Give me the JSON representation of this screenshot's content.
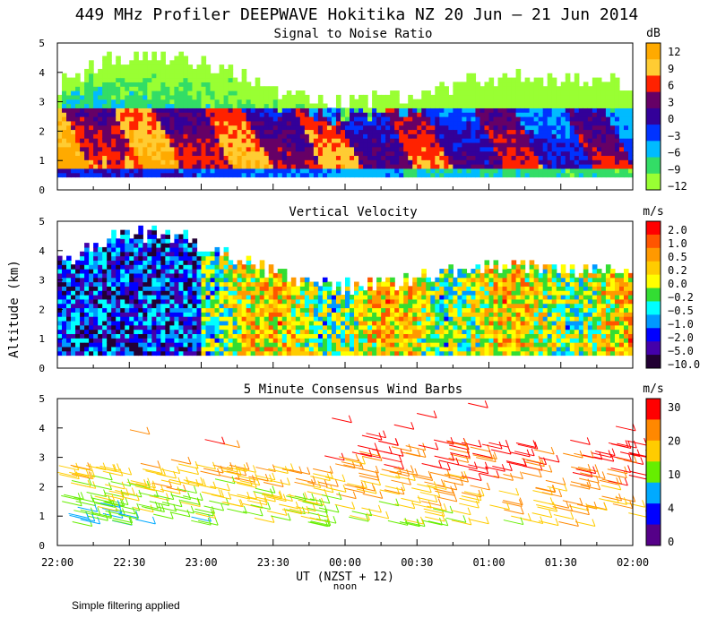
{
  "title": "449 MHz Profiler DEEPWAVE Hokitika NZ 20 Jun – 21 Jun 2014",
  "ylabel": "Altitude (km)",
  "xlabel": "UT  (NZST + 12)",
  "noon_label": "noon",
  "footer": "Simple filtering applied",
  "x_ticks": [
    "22:00",
    "22:30",
    "23:00",
    "23:30",
    "00:00",
    "00:30",
    "01:00",
    "01:30",
    "02:00"
  ],
  "chart_data": [
    {
      "type": "heatmap",
      "title": "Signal to Noise Ratio",
      "ylim": [
        0,
        5
      ],
      "y_ticks": [
        "0",
        "1",
        "2",
        "3",
        "4",
        "5"
      ],
      "colorbar": {
        "unit": "dB",
        "labels": [
          "12",
          "9",
          "6",
          "3",
          "0",
          "−3",
          "−6",
          "−9",
          "−12"
        ],
        "colors": [
          "#ffaa00",
          "#ffcc33",
          "#ff2200",
          "#660066",
          "#330099",
          "#0033ff",
          "#00bbff",
          "#33dd66",
          "#99ff33"
        ]
      }
    },
    {
      "type": "heatmap",
      "title": "Vertical Velocity",
      "ylim": [
        0,
        5
      ],
      "y_ticks": [
        "0",
        "1",
        "2",
        "3",
        "4",
        "5"
      ],
      "colorbar": {
        "unit": "m/s",
        "labels": [
          "2.0",
          "1.0",
          "0.5",
          "0.2",
          "0.0",
          "−0.2",
          "−0.5",
          "−1.0",
          "−2.0",
          "−5.0",
          "−10.0"
        ],
        "colors": [
          "#ff0000",
          "#ff5500",
          "#ff9900",
          "#ffcc00",
          "#ffff00",
          "#33dd33",
          "#00ffff",
          "#0099ff",
          "#0000ff",
          "#4400aa",
          "#220033"
        ]
      }
    },
    {
      "type": "scatter",
      "title": "5 Minute Consensus Wind Barbs",
      "ylim": [
        0,
        5
      ],
      "y_ticks": [
        "0",
        "1",
        "2",
        "3",
        "4",
        "5"
      ],
      "colorbar": {
        "unit": "m/s",
        "labels": [
          "30",
          "20",
          "10",
          "4",
          "0"
        ],
        "colors": [
          "#ff0000",
          "#ff8800",
          "#ffcc00",
          "#66ee00",
          "#00aaff",
          "#0000ff",
          "#550088"
        ]
      }
    }
  ]
}
